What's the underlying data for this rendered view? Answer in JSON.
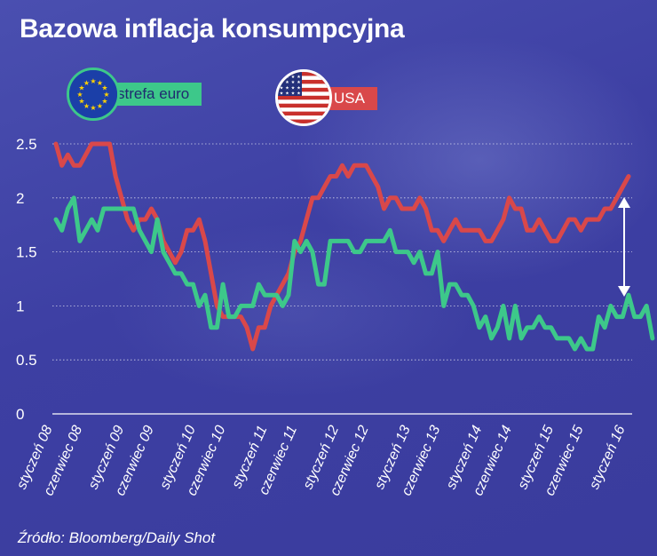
{
  "title": "Bazowa inflacja konsumpcyjna",
  "source": "Źródło: Bloomberg/Daily Shot",
  "colors": {
    "eu": "#3dc88a",
    "us": "#d9484a",
    "grid": "#ffffff",
    "axis": "#ffffff"
  },
  "legend": {
    "eu": "strefa euro",
    "us": "USA"
  },
  "icons": {
    "eu_flag": "eu-flag-icon",
    "us_flag": "us-flag-icon",
    "range_arrow": "double-arrow-icon"
  },
  "chart_data": {
    "type": "line",
    "title": "Bazowa inflacja konsumpcyjna",
    "ylim": [
      0,
      2.5
    ],
    "yticks": [
      "0",
      "0.5",
      "1",
      "1.5",
      "2",
      "2.5"
    ],
    "ytick_values": [
      0,
      0.5,
      1,
      1.5,
      2,
      2.5
    ],
    "xticks": [
      "styczeń 08",
      "czerwiec 08",
      "styczeń 09",
      "czerwiec 09",
      "styczeń 10",
      "czerwiec 10",
      "styczeń 11",
      "czerwiec 11",
      "styczeń 12",
      "czerwiec 12",
      "styczeń 13",
      "czerwiec 13",
      "styczeń 14",
      "czerwiec 14",
      "styczeń 15",
      "czerwiec 15",
      "styczeń 16"
    ],
    "xtick_index": [
      0,
      5,
      12,
      17,
      24,
      29,
      36,
      41,
      48,
      53,
      60,
      65,
      72,
      77,
      84,
      89,
      96
    ],
    "grid": true,
    "series": [
      {
        "name": "USA",
        "key": "us",
        "values": [
          2.5,
          2.3,
          2.4,
          2.3,
          2.3,
          2.4,
          2.5,
          2.5,
          2.5,
          2.5,
          2.2,
          2.0,
          1.8,
          1.7,
          1.8,
          1.8,
          1.9,
          1.8,
          1.6,
          1.5,
          1.4,
          1.5,
          1.7,
          1.7,
          1.8,
          1.6,
          1.3,
          1.0,
          0.9,
          0.9,
          0.9,
          0.9,
          0.8,
          0.6,
          0.8,
          0.8,
          1.0,
          1.1,
          1.2,
          1.3,
          1.5,
          1.6,
          1.8,
          2.0,
          2.0,
          2.1,
          2.2,
          2.2,
          2.3,
          2.2,
          2.3,
          2.3,
          2.3,
          2.2,
          2.1,
          1.9,
          2.0,
          2.0,
          1.9,
          1.9,
          1.9,
          2.0,
          1.9,
          1.7,
          1.7,
          1.6,
          1.7,
          1.8,
          1.7,
          1.7,
          1.7,
          1.7,
          1.6,
          1.6,
          1.7,
          1.8,
          2.0,
          1.9,
          1.9,
          1.7,
          1.7,
          1.8,
          1.7,
          1.6,
          1.6,
          1.7,
          1.8,
          1.8,
          1.7,
          1.8,
          1.8,
          1.8,
          1.9,
          1.9,
          2.0,
          2.1,
          2.2
        ]
      },
      {
        "name": "strefa euro",
        "key": "eu",
        "values": [
          1.8,
          1.7,
          1.9,
          2.0,
          1.6,
          1.7,
          1.8,
          1.7,
          1.9,
          1.9,
          1.9,
          1.9,
          1.9,
          1.9,
          1.7,
          1.6,
          1.5,
          1.8,
          1.5,
          1.4,
          1.3,
          1.3,
          1.2,
          1.2,
          1.0,
          1.1,
          0.8,
          0.8,
          1.2,
          0.9,
          0.9,
          1.0,
          1.0,
          1.0,
          1.2,
          1.1,
          1.1,
          1.1,
          1.0,
          1.1,
          1.6,
          1.5,
          1.6,
          1.5,
          1.2,
          1.2,
          1.6,
          1.6,
          1.6,
          1.6,
          1.5,
          1.5,
          1.6,
          1.6,
          1.6,
          1.6,
          1.7,
          1.5,
          1.5,
          1.5,
          1.4,
          1.5,
          1.3,
          1.3,
          1.5,
          1.0,
          1.2,
          1.2,
          1.1,
          1.1,
          1.0,
          0.8,
          0.9,
          0.7,
          0.8,
          1.0,
          0.7,
          1.0,
          0.7,
          0.8,
          0.8,
          0.9,
          0.8,
          0.8,
          0.7,
          0.7,
          0.7,
          0.6,
          0.7,
          0.6,
          0.6,
          0.9,
          0.8,
          1.0,
          0.9,
          0.9,
          1.1,
          0.9,
          0.9,
          1.0,
          0.7
        ]
      }
    ]
  }
}
